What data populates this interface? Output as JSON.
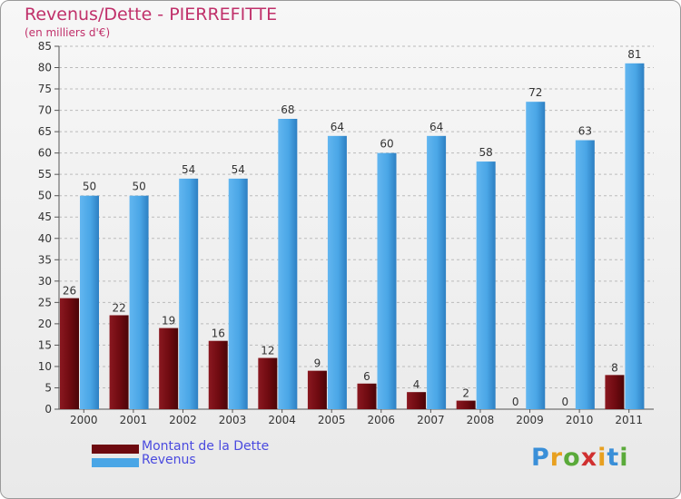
{
  "header": {
    "title": "Revenus/Dette - PIERREFITTE",
    "subtitle": "(en milliers d'€)"
  },
  "logo": {
    "text": "Proxiti",
    "letters": [
      {
        "ch": "P",
        "color": "#3a8fd8"
      },
      {
        "ch": "r",
        "color": "#e8a020"
      },
      {
        "ch": "o",
        "color": "#5aaa3a"
      },
      {
        "ch": "x",
        "color": "#d03030"
      },
      {
        "ch": "i",
        "color": "#e8a020"
      },
      {
        "ch": "t",
        "color": "#3a8fd8"
      },
      {
        "ch": "i",
        "color": "#5aaa3a"
      }
    ]
  },
  "colors": {
    "dette": "#6e0a10",
    "revenus": "#4aa6e6",
    "axis_text": "#333333",
    "grid": "#bbbbbb"
  },
  "chart_data": {
    "type": "bar",
    "title": "Revenus/Dette - PIERREFITTE",
    "subtitle": "(en milliers d'€)",
    "categories": [
      "2000",
      "2001",
      "2002",
      "2003",
      "2004",
      "2005",
      "2006",
      "2007",
      "2008",
      "2009",
      "2010",
      "2011"
    ],
    "series": [
      {
        "name": "Montant de la Dette",
        "values": [
          26,
          22,
          19,
          16,
          12,
          9,
          6,
          4,
          2,
          0,
          0,
          8
        ]
      },
      {
        "name": "Revenus",
        "values": [
          50,
          50,
          54,
          54,
          68,
          64,
          60,
          64,
          58,
          72,
          63,
          81
        ]
      }
    ],
    "ylim": [
      0,
      85
    ],
    "yticks": [
      0,
      5,
      10,
      15,
      20,
      25,
      30,
      35,
      40,
      45,
      50,
      55,
      60,
      65,
      70,
      75,
      80,
      85
    ],
    "grid": true,
    "legend": "bottom-left"
  }
}
